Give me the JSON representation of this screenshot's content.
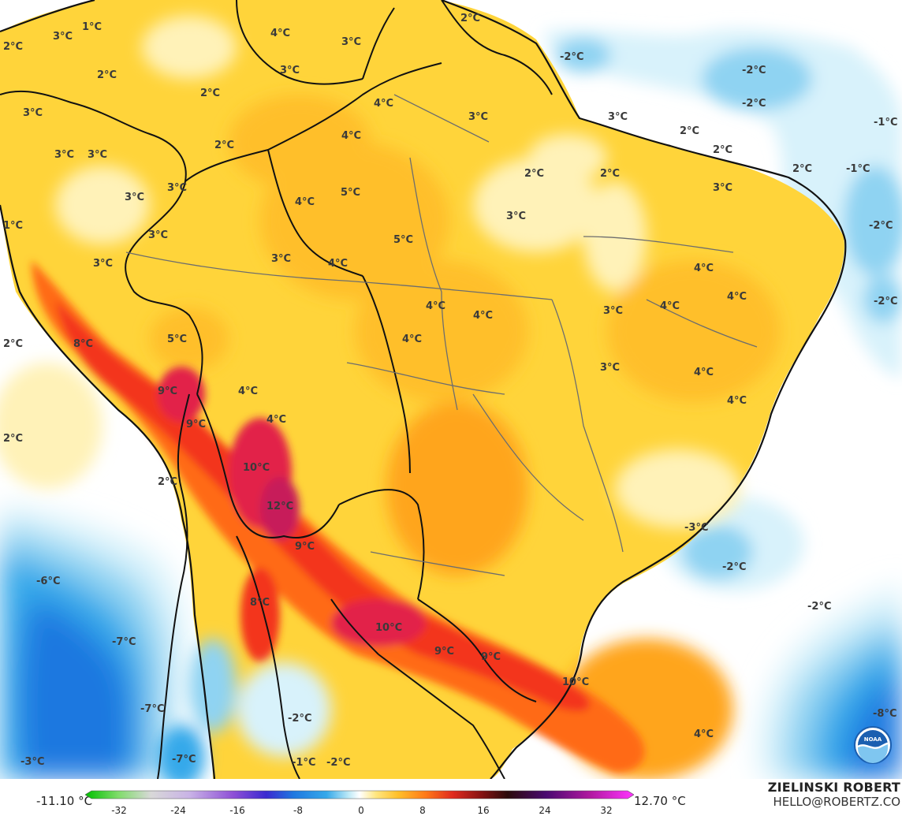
{
  "colors": {
    "ocean": "#ffffff",
    "warm_light": "#fff2b8",
    "warm_mid": "#ffd43a",
    "warm_orange": "#ffa51e",
    "warm_deep": "#ff6a18",
    "warm_red": "#f3361e",
    "hot": "#d81a4e",
    "cold_light": "#d8f2fb",
    "cold_mid": "#8fd3f2",
    "cold_deep": "#35a9ea",
    "cold_deeper": "#1f78e0",
    "border": "#111111",
    "state_border": "#6d6d6d"
  },
  "map": {
    "labels": [
      {
        "text": "2°C"
      },
      {
        "text": "3°C"
      },
      {
        "text": "1°C"
      },
      {
        "text": "2°C"
      },
      {
        "text": "4°C"
      },
      {
        "text": "3°C"
      },
      {
        "text": "2°C"
      },
      {
        "text": "3°C"
      },
      {
        "text": "-2°C"
      },
      {
        "text": "-2°C"
      },
      {
        "text": "-2°C"
      },
      {
        "text": "2°C"
      },
      {
        "text": "4°C"
      },
      {
        "text": "3°C"
      },
      {
        "text": "3°C"
      },
      {
        "text": "2°C"
      },
      {
        "text": "2°C"
      },
      {
        "text": "2°C"
      },
      {
        "text": "-1°C"
      },
      {
        "text": "-1°C"
      },
      {
        "text": "3°C"
      },
      {
        "text": "3°C"
      },
      {
        "text": "4°C"
      },
      {
        "text": "3°C"
      },
      {
        "text": "2°C"
      },
      {
        "text": "3°C"
      },
      {
        "text": "-2°C"
      },
      {
        "text": "3°C"
      },
      {
        "text": "3°C"
      },
      {
        "text": "5°C"
      },
      {
        "text": "4°C"
      },
      {
        "text": "2°C"
      },
      {
        "text": "2°C"
      },
      {
        "text": "1°C"
      },
      {
        "text": "3°C"
      },
      {
        "text": "5°C"
      },
      {
        "text": "3°C"
      },
      {
        "text": "3°C"
      },
      {
        "text": "4°C"
      },
      {
        "text": "4°C"
      },
      {
        "text": "4°C"
      },
      {
        "text": "4°C"
      },
      {
        "text": "-2°C"
      },
      {
        "text": "4°C"
      },
      {
        "text": "4°C"
      },
      {
        "text": "3°C"
      },
      {
        "text": "8°C"
      },
      {
        "text": "5°C"
      },
      {
        "text": "2°C"
      },
      {
        "text": "3°C"
      },
      {
        "text": "4°C"
      },
      {
        "text": "9°C"
      },
      {
        "text": "4°C"
      },
      {
        "text": "4°C"
      },
      {
        "text": "4°C"
      },
      {
        "text": "4°C"
      },
      {
        "text": "9°C"
      },
      {
        "text": "2°C"
      },
      {
        "text": "3°C"
      },
      {
        "text": "10°C"
      },
      {
        "text": "2°C"
      },
      {
        "text": "12°C"
      },
      {
        "text": "-3°C"
      },
      {
        "text": "9°C"
      },
      {
        "text": "-2°C"
      },
      {
        "text": "-6°C"
      },
      {
        "text": "8°C"
      },
      {
        "text": "-2°C"
      },
      {
        "text": "10°C"
      },
      {
        "text": "-7°C"
      },
      {
        "text": "9°C"
      },
      {
        "text": "9°C"
      },
      {
        "text": "10°C"
      },
      {
        "text": "-7°C"
      },
      {
        "text": "-8°C"
      },
      {
        "text": "-2°C"
      },
      {
        "text": "4°C"
      },
      {
        "text": "-7°C"
      },
      {
        "text": "-3°C"
      },
      {
        "text": "-1°C"
      },
      {
        "text": "-2°C"
      }
    ]
  },
  "colorbar": {
    "min_label": "-11.10 °C",
    "max_label": "12.70 °C",
    "ticks": [
      "-32",
      "-24",
      "-16",
      "-8",
      "0",
      "8",
      "16",
      "24",
      "32"
    ]
  },
  "credit": {
    "name": "ZIELINSKI ROBERT",
    "email": "HELLO@ROBERTZ.CO"
  }
}
